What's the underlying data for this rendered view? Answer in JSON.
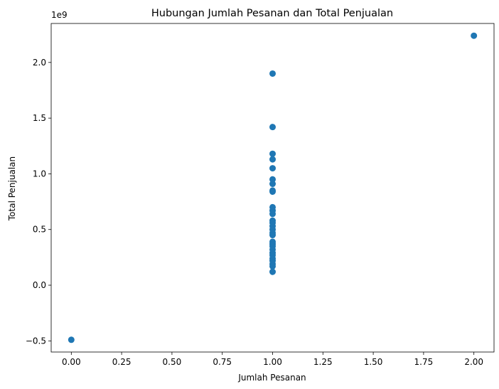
{
  "chart_data": {
    "type": "scatter",
    "title": "Hubungan Jumlah Pesanan dan Total Penjualan",
    "xlabel": "Jumlah Pesanan",
    "ylabel": "Total Penjualan",
    "y_offset_label": "1e9",
    "xlim": [
      -0.1,
      2.1
    ],
    "ylim": [
      -0.6,
      2.35
    ],
    "x_ticks": [
      0.0,
      0.25,
      0.5,
      0.75,
      1.0,
      1.25,
      1.5,
      1.75,
      2.0
    ],
    "x_tick_labels": [
      "0.00",
      "0.25",
      "0.50",
      "0.75",
      "1.00",
      "1.25",
      "1.50",
      "1.75",
      "2.00"
    ],
    "y_ticks": [
      -0.5,
      0.0,
      0.5,
      1.0,
      1.5,
      2.0
    ],
    "y_tick_labels": [
      "−0.5",
      "0.0",
      "0.5",
      "1.0",
      "1.5",
      "2.0"
    ],
    "grid": false,
    "legend": "none",
    "marker_color": "#1f77b4",
    "points": [
      {
        "x": 0,
        "y": -0.49
      },
      {
        "x": 2,
        "y": 2.24
      },
      {
        "x": 1,
        "y": 1.9
      },
      {
        "x": 1,
        "y": 1.42
      },
      {
        "x": 1,
        "y": 1.18
      },
      {
        "x": 1,
        "y": 1.13
      },
      {
        "x": 1,
        "y": 1.05
      },
      {
        "x": 1,
        "y": 0.95
      },
      {
        "x": 1,
        "y": 0.91
      },
      {
        "x": 1,
        "y": 0.85
      },
      {
        "x": 1,
        "y": 0.84
      },
      {
        "x": 1,
        "y": 0.7
      },
      {
        "x": 1,
        "y": 0.67
      },
      {
        "x": 1,
        "y": 0.64
      },
      {
        "x": 1,
        "y": 0.58
      },
      {
        "x": 1,
        "y": 0.56
      },
      {
        "x": 1,
        "y": 0.53
      },
      {
        "x": 1,
        "y": 0.5
      },
      {
        "x": 1,
        "y": 0.47
      },
      {
        "x": 1,
        "y": 0.45
      },
      {
        "x": 1,
        "y": 0.39
      },
      {
        "x": 1,
        "y": 0.37
      },
      {
        "x": 1,
        "y": 0.35
      },
      {
        "x": 1,
        "y": 0.32
      },
      {
        "x": 1,
        "y": 0.29
      },
      {
        "x": 1,
        "y": 0.27
      },
      {
        "x": 1,
        "y": 0.24
      },
      {
        "x": 1,
        "y": 0.22
      },
      {
        "x": 1,
        "y": 0.19
      },
      {
        "x": 1,
        "y": 0.17
      },
      {
        "x": 1,
        "y": 0.12
      }
    ]
  }
}
